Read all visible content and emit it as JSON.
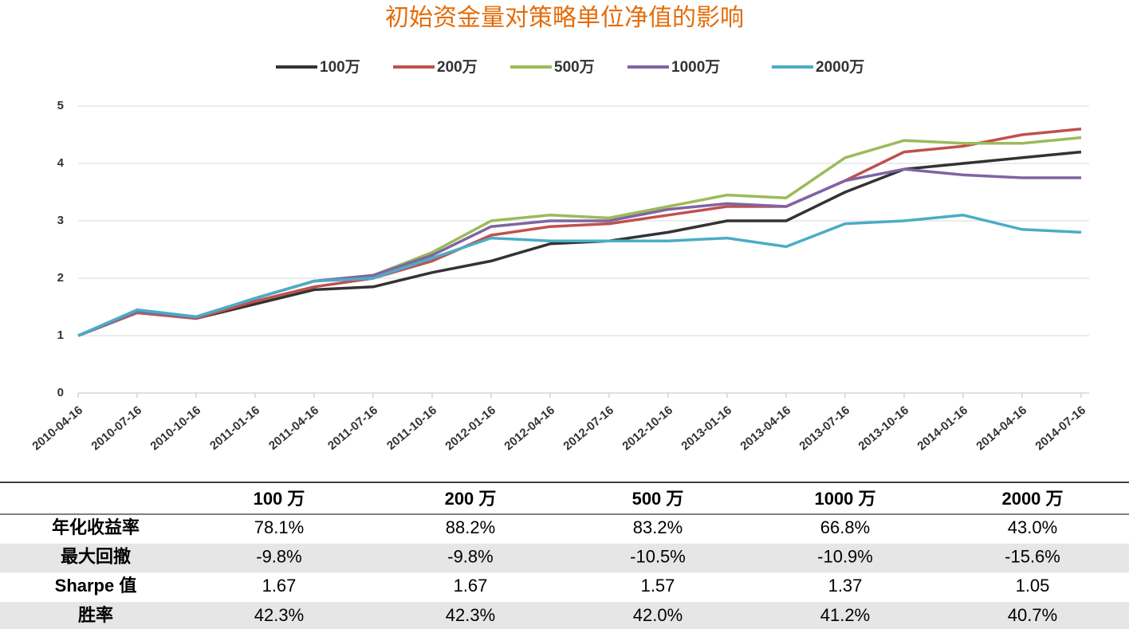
{
  "chart_data": {
    "type": "line",
    "title": "初始资金量对策略单位净值的影响",
    "x": [
      "2010-04-16",
      "2010-07-16",
      "2010-10-16",
      "2011-01-16",
      "2011-04-16",
      "2011-07-16",
      "2011-10-16",
      "2012-01-16",
      "2012-04-16",
      "2012-07-16",
      "2012-10-16",
      "2013-01-16",
      "2013-04-16",
      "2013-07-16",
      "2013-10-16",
      "2014-01-16",
      "2014-04-16",
      "2014-07-16"
    ],
    "xticks": [
      "2010-04-16",
      "2010-07-16",
      "2010-10-16",
      "2011-01-16",
      "2011-04-16",
      "2011-07-16",
      "2011-10-16",
      "2012-01-16",
      "2012-04-16",
      "2012-07-16",
      "2012-10-16",
      "2013-01-16",
      "2013-04-16",
      "2013-07-16",
      "2013-10-16",
      "2014-01-16",
      "2014-04-16",
      "2014-07-16"
    ],
    "ylim": [
      0,
      5
    ],
    "yticks": [
      0,
      1,
      2,
      3,
      4,
      5
    ],
    "grid": true,
    "series": [
      {
        "name": "100万",
        "color": "#333333",
        "values": [
          1.0,
          1.4,
          1.3,
          1.55,
          1.8,
          1.85,
          2.1,
          2.3,
          2.6,
          2.65,
          2.8,
          3.0,
          3.0,
          3.5,
          3.9,
          4.0,
          4.1,
          4.2
        ]
      },
      {
        "name": "200万",
        "color": "#c0504d",
        "values": [
          1.0,
          1.4,
          1.3,
          1.6,
          1.85,
          2.0,
          2.3,
          2.75,
          2.9,
          2.95,
          3.1,
          3.25,
          3.25,
          3.7,
          4.2,
          4.3,
          4.5,
          4.6
        ]
      },
      {
        "name": "500万",
        "color": "#9bbb59",
        "values": [
          1.0,
          1.42,
          1.32,
          1.65,
          1.95,
          2.05,
          2.45,
          3.0,
          3.1,
          3.05,
          3.25,
          3.45,
          3.4,
          4.1,
          4.4,
          4.35,
          4.35,
          4.45
        ]
      },
      {
        "name": "1000万",
        "color": "#8064a2",
        "values": [
          1.0,
          1.42,
          1.32,
          1.65,
          1.95,
          2.05,
          2.4,
          2.9,
          3.0,
          3.0,
          3.2,
          3.3,
          3.25,
          3.7,
          3.9,
          3.8,
          3.75,
          3.75
        ]
      },
      {
        "name": "2000万",
        "color": "#4bacc6",
        "values": [
          1.0,
          1.45,
          1.33,
          1.65,
          1.95,
          2.0,
          2.35,
          2.7,
          2.65,
          2.65,
          2.65,
          2.7,
          2.55,
          2.95,
          3.0,
          3.1,
          2.85,
          2.8
        ]
      }
    ]
  },
  "table": {
    "header": [
      "100 万",
      "200 万",
      "500 万",
      "1000 万",
      "2000 万"
    ],
    "rows": [
      [
        "年化收益率",
        "78.1%",
        "88.2%",
        "83.2%",
        "66.8%",
        "43.0%"
      ],
      [
        "最大回撤",
        "-9.8%",
        "-9.8%",
        "-10.5%",
        "-10.9%",
        "-15.6%"
      ],
      [
        "Sharpe 值",
        "1.67",
        "1.67",
        "1.57",
        "1.37",
        "1.05"
      ],
      [
        "胜率",
        "42.3%",
        "42.3%",
        "42.0%",
        "41.2%",
        "40.7%"
      ]
    ]
  }
}
